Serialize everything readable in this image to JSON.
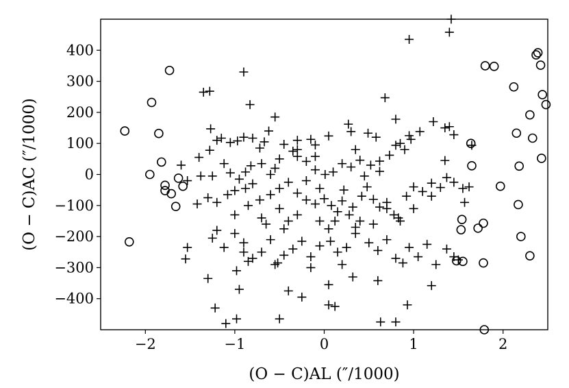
{
  "chart_data": {
    "type": "scatter",
    "title": "",
    "xlabel": "(O − C)AL (″/1000)",
    "ylabel": "(O − C)AC (″/1000)",
    "xlim": [
      -2.5,
      2.5
    ],
    "ylim": [
      -500,
      500
    ],
    "xticks": [
      -2,
      -1,
      0,
      1,
      2
    ],
    "yticks": [
      -400,
      -300,
      -200,
      -100,
      0,
      100,
      200,
      300,
      400
    ],
    "grid": false,
    "legend": "none",
    "series": [
      {
        "marker": "plus",
        "points": [
          [
            -1.35,
            265
          ],
          [
            -1.28,
            268
          ],
          [
            -0.9,
            330
          ],
          [
            -0.83,
            225
          ],
          [
            -0.55,
            185
          ],
          [
            0.27,
            162
          ],
          [
            0.3,
            138
          ],
          [
            0.05,
            124
          ],
          [
            -0.15,
            113
          ],
          [
            -0.1,
            95
          ],
          [
            -0.3,
            110
          ],
          [
            -0.45,
            97
          ],
          [
            -0.62,
            140
          ],
          [
            -0.67,
            105
          ],
          [
            -0.72,
            85
          ],
          [
            -0.8,
            117
          ],
          [
            -0.9,
            120
          ],
          [
            -0.97,
            108
          ],
          [
            -1.05,
            103
          ],
          [
            -1.15,
            117
          ],
          [
            -1.2,
            110
          ],
          [
            -1.28,
            78
          ],
          [
            -1.27,
            147
          ],
          [
            0.49,
            133
          ],
          [
            0.58,
            120
          ],
          [
            0.68,
            247
          ],
          [
            0.8,
            178
          ],
          [
            0.95,
            125
          ],
          [
            0.97,
            113
          ],
          [
            1.07,
            138
          ],
          [
            1.22,
            170
          ],
          [
            1.35,
            150
          ],
          [
            1.4,
            154
          ],
          [
            1.45,
            128
          ],
          [
            1.65,
            94
          ],
          [
            0.85,
            100
          ],
          [
            0.9,
            80
          ],
          [
            0.8,
            94
          ],
          [
            0.73,
            62
          ],
          [
            0.62,
            43
          ],
          [
            0.52,
            30
          ],
          [
            0.4,
            46
          ],
          [
            0.3,
            24
          ],
          [
            0.2,
            35
          ],
          [
            0.1,
            8
          ],
          [
            0.01,
            0
          ],
          [
            -0.1,
            15
          ],
          [
            -0.2,
            42
          ],
          [
            -0.3,
            58
          ],
          [
            -0.35,
            75
          ],
          [
            -0.5,
            50
          ],
          [
            -0.55,
            20
          ],
          [
            -0.6,
            0
          ],
          [
            -0.7,
            35
          ],
          [
            -0.82,
            28
          ],
          [
            -0.88,
            8
          ],
          [
            -0.95,
            -15
          ],
          [
            -1.05,
            5
          ],
          [
            -1.12,
            35
          ],
          [
            -1.25,
            -5
          ],
          [
            -1.38,
            -5
          ],
          [
            -1.4,
            55
          ],
          [
            -1.6,
            30
          ],
          [
            -1.53,
            -20
          ],
          [
            -1.42,
            -95
          ],
          [
            -1.3,
            -75
          ],
          [
            -1.2,
            -90
          ],
          [
            -1.08,
            -65
          ],
          [
            -1.0,
            -52
          ],
          [
            -0.88,
            -45
          ],
          [
            -0.8,
            -30
          ],
          [
            -0.72,
            -82
          ],
          [
            -0.6,
            -65
          ],
          [
            -0.5,
            -45
          ],
          [
            -0.4,
            -25
          ],
          [
            -0.3,
            -60
          ],
          [
            -0.2,
            -82
          ],
          [
            -0.1,
            -95
          ],
          [
            0.0,
            -78
          ],
          [
            0.08,
            -100
          ],
          [
            0.2,
            -85
          ],
          [
            0.32,
            -105
          ],
          [
            0.42,
            -70
          ],
          [
            0.48,
            -40
          ],
          [
            0.55,
            -80
          ],
          [
            0.62,
            -105
          ],
          [
            0.7,
            -90
          ],
          [
            0.78,
            -130
          ],
          [
            0.83,
            -140
          ],
          [
            0.92,
            -70
          ],
          [
            1.0,
            -40
          ],
          [
            1.1,
            -55
          ],
          [
            1.2,
            -28
          ],
          [
            1.3,
            -42
          ],
          [
            1.37,
            -10
          ],
          [
            1.45,
            -25
          ],
          [
            1.55,
            -45
          ],
          [
            1.62,
            -40
          ],
          [
            1.57,
            -90
          ],
          [
            -1.2,
            -180
          ],
          [
            -1.25,
            -205
          ],
          [
            -1.12,
            -235
          ],
          [
            -1.0,
            -190
          ],
          [
            -0.9,
            -220
          ],
          [
            -0.8,
            -270
          ],
          [
            -0.7,
            -250
          ],
          [
            -0.6,
            -210
          ],
          [
            -0.52,
            -285
          ],
          [
            -0.45,
            -260
          ],
          [
            -0.35,
            -240
          ],
          [
            -0.25,
            -215
          ],
          [
            -0.15,
            -265
          ],
          [
            -0.05,
            -230
          ],
          [
            0.07,
            -215
          ],
          [
            0.15,
            -250
          ],
          [
            0.25,
            -235
          ],
          [
            0.35,
            -190
          ],
          [
            0.5,
            -220
          ],
          [
            0.6,
            -245
          ],
          [
            0.7,
            -210
          ],
          [
            0.8,
            -270
          ],
          [
            0.95,
            -235
          ],
          [
            1.05,
            -265
          ],
          [
            1.15,
            -225
          ],
          [
            1.25,
            -290
          ],
          [
            1.37,
            -240
          ],
          [
            1.45,
            -265
          ],
          [
            1.5,
            -275
          ],
          [
            -1.53,
            -235
          ],
          [
            -1.55,
            -272
          ],
          [
            -1.3,
            -335
          ],
          [
            -0.98,
            -310
          ],
          [
            -0.95,
            -370
          ],
          [
            -0.85,
            -280
          ],
          [
            -0.55,
            -290
          ],
          [
            -0.4,
            -375
          ],
          [
            -0.25,
            -395
          ],
          [
            0.05,
            -355
          ],
          [
            0.2,
            -290
          ],
          [
            0.32,
            -330
          ],
          [
            0.6,
            -342
          ],
          [
            0.88,
            -285
          ],
          [
            1.2,
            -358
          ],
          [
            -1.22,
            -430
          ],
          [
            -0.98,
            -465
          ],
          [
            -0.5,
            -465
          ],
          [
            0.12,
            -425
          ],
          [
            0.05,
            -420
          ],
          [
            0.63,
            -475
          ],
          [
            0.8,
            -475
          ],
          [
            0.93,
            -420
          ],
          [
            -1.1,
            -480
          ],
          [
            0.95,
            435
          ],
          [
            1.4,
            458
          ],
          [
            1.42,
            500
          ],
          [
            -0.1,
            58
          ],
          [
            0.35,
            80
          ],
          [
            0.15,
            -120
          ],
          [
            -0.4,
            -150
          ],
          [
            -0.7,
            -140
          ],
          [
            0.05,
            -175
          ],
          [
            0.55,
            -160
          ],
          [
            1.0,
            -110
          ],
          [
            -0.2,
            -20
          ],
          [
            0.22,
            -50
          ],
          [
            -1.0,
            -130
          ],
          [
            -0.85,
            -100
          ],
          [
            -0.65,
            -160
          ],
          [
            -0.5,
            -110
          ],
          [
            -0.3,
            -130
          ],
          [
            -0.05,
            -150
          ],
          [
            0.12,
            -150
          ],
          [
            0.28,
            -130
          ],
          [
            0.4,
            -150
          ],
          [
            0.7,
            -110
          ],
          [
            0.85,
            -150
          ],
          [
            1.2,
            -70
          ],
          [
            1.35,
            45
          ],
          [
            -0.3,
            80
          ],
          [
            0.45,
            -5
          ],
          [
            -0.05,
            -45
          ],
          [
            -0.45,
            -175
          ],
          [
            0.35,
            -170
          ],
          [
            -0.9,
            -250
          ],
          [
            0.62,
            10
          ],
          [
            -0.15,
            -300
          ]
        ]
      },
      {
        "marker": "circle",
        "points": [
          [
            -2.23,
            140
          ],
          [
            -1.93,
            232
          ],
          [
            -1.73,
            335
          ],
          [
            -1.85,
            132
          ],
          [
            -1.82,
            40
          ],
          [
            -1.95,
            0
          ],
          [
            -1.78,
            -35
          ],
          [
            -1.78,
            -52
          ],
          [
            -1.71,
            -62
          ],
          [
            -1.63,
            -12
          ],
          [
            -1.58,
            -38
          ],
          [
            -1.66,
            -103
          ],
          [
            -2.18,
            -217
          ],
          [
            1.64,
            100
          ],
          [
            1.65,
            28
          ],
          [
            1.72,
            -173
          ],
          [
            1.53,
            -178
          ],
          [
            1.54,
            -145
          ],
          [
            1.78,
            -157
          ],
          [
            1.8,
            350
          ],
          [
            1.9,
            348
          ],
          [
            2.12,
            282
          ],
          [
            2.3,
            192
          ],
          [
            2.33,
            117
          ],
          [
            2.15,
            133
          ],
          [
            2.18,
            27
          ],
          [
            1.97,
            -38
          ],
          [
            2.17,
            -97
          ],
          [
            2.2,
            -200
          ],
          [
            2.3,
            -262
          ],
          [
            2.37,
            385
          ],
          [
            2.39,
            392
          ],
          [
            2.42,
            352
          ],
          [
            2.44,
            257
          ],
          [
            2.48,
            225
          ],
          [
            2.43,
            52
          ],
          [
            1.48,
            -278
          ],
          [
            1.55,
            -280
          ],
          [
            1.78,
            -285
          ],
          [
            1.79,
            -500
          ]
        ]
      }
    ]
  }
}
